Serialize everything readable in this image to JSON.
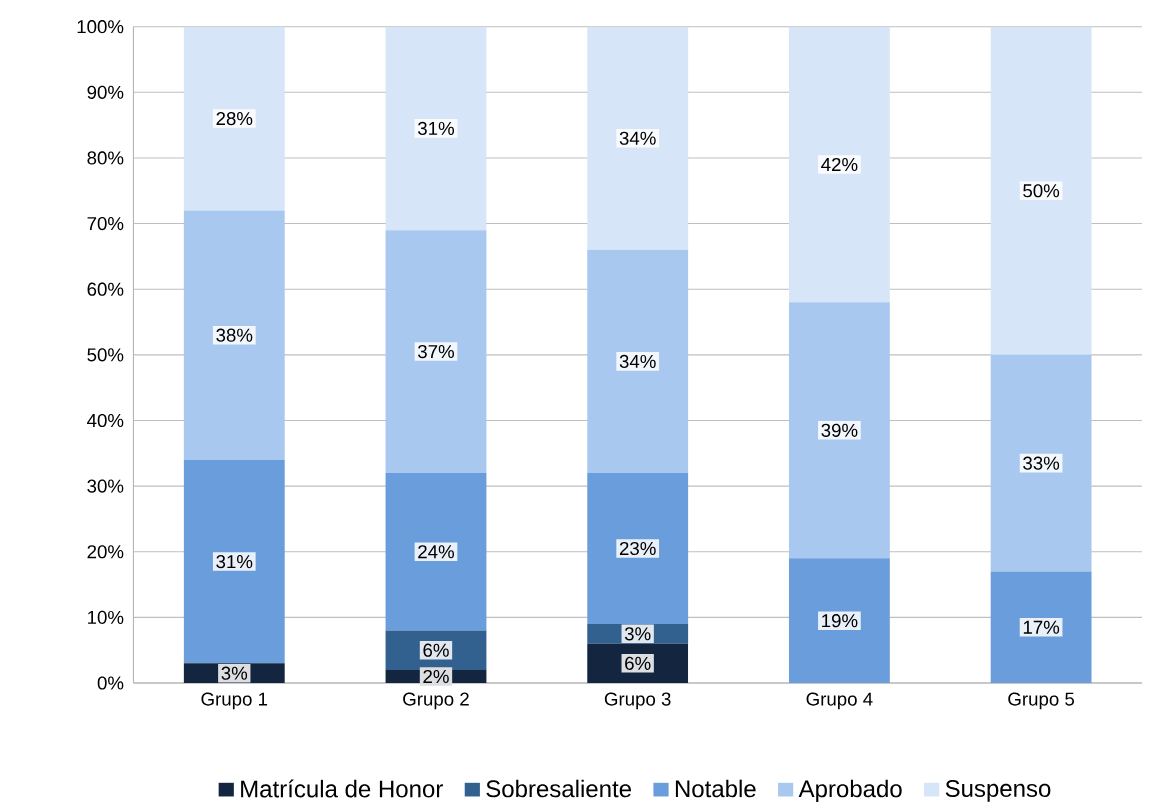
{
  "chart_data": {
    "type": "bar",
    "stacked": true,
    "categories": [
      "Grupo 1",
      "Grupo 2",
      "Grupo 3",
      "Grupo 4",
      "Grupo 5"
    ],
    "series": [
      {
        "name": "Matrícula de Honor",
        "color": "#14263f",
        "values": [
          3,
          2,
          6,
          0,
          0
        ],
        "value_labels": [
          "3%",
          "2%",
          "6%",
          null,
          null
        ]
      },
      {
        "name": "Sobresaliente",
        "color": "#33618f",
        "values": [
          0,
          6,
          3,
          0,
          0
        ],
        "value_labels": [
          null,
          "6%",
          "3%",
          null,
          null
        ]
      },
      {
        "name": "Notable",
        "color": "#6a9ddb",
        "values": [
          31,
          24,
          23,
          19,
          17
        ],
        "value_labels": [
          "31%",
          "24%",
          "23%",
          "19%",
          "17%"
        ]
      },
      {
        "name": "Aprobado",
        "color": "#a9c8ef",
        "values": [
          38,
          37,
          34,
          39,
          33
        ],
        "value_labels": [
          "38%",
          "37%",
          "34%",
          "39%",
          "33%"
        ]
      },
      {
        "name": "Suspenso",
        "color": "#d6e6f8",
        "values": [
          28,
          31,
          34,
          42,
          50
        ],
        "value_labels": [
          "28%",
          "31%",
          "34%",
          "42%",
          "50%"
        ]
      }
    ],
    "ylim": [
      0,
      100
    ],
    "yticks": [
      {
        "value": 0,
        "label": "0%"
      },
      {
        "value": 10,
        "label": "10%"
      },
      {
        "value": 20,
        "label": "20%"
      },
      {
        "value": 30,
        "label": "30%"
      },
      {
        "value": 40,
        "label": "40%"
      },
      {
        "value": 50,
        "label": "50%"
      },
      {
        "value": 60,
        "label": "60%"
      },
      {
        "value": 70,
        "label": "70%"
      },
      {
        "value": 80,
        "label": "80%"
      },
      {
        "value": 90,
        "label": "90%"
      },
      {
        "value": 100,
        "label": "100%"
      }
    ],
    "grid": "y",
    "legend": "bottom"
  }
}
